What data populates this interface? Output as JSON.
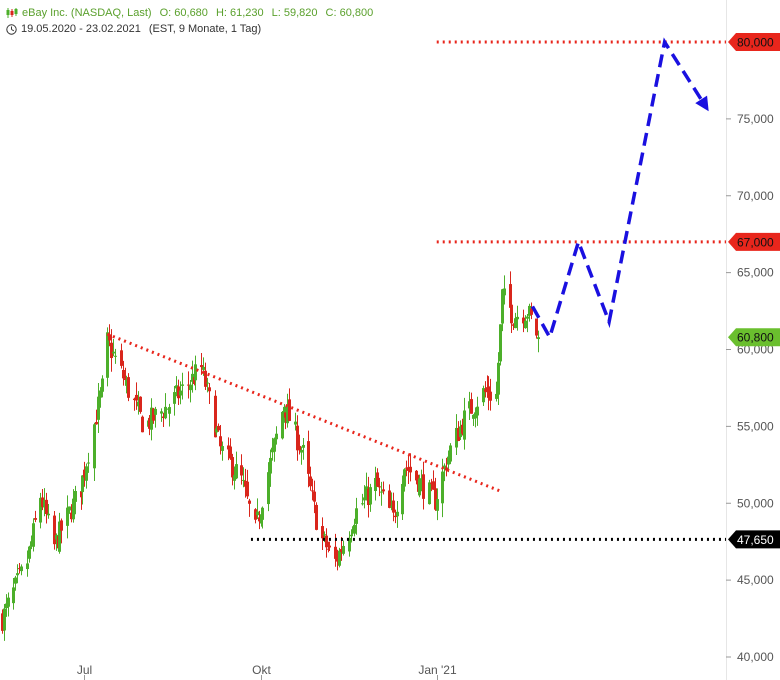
{
  "header": {
    "title": "eBay Inc. (NASDAQ, Last)",
    "open": "O: 60,680",
    "high": "H: 61,230",
    "low": "L: 59,820",
    "close": "C: 60,800",
    "range": "19.05.2020 - 23.02.2021",
    "timeframe": "(EST, 9 Monate, 1 Tag)"
  },
  "colors": {
    "up": "#4caf2a",
    "down": "#d9261c",
    "resistance": "#e8261c",
    "support": "#000000",
    "forecast": "#1a10e0",
    "axis_text": "#555555",
    "last_price_badge": "#6abf2e"
  },
  "icons": {
    "chart_type": "candlestick-icon",
    "period": "clock-icon"
  },
  "chart_data": {
    "type": "candlestick",
    "title": "eBay Inc. (NASDAQ, Last)",
    "xlabel": "",
    "ylabel": "",
    "ylim": [
      39.5,
      82.0
    ],
    "xlim": [
      "2020-05-19",
      "2021-05-31"
    ],
    "y_ticks": [
      40,
      45,
      50,
      55,
      60,
      65,
      70,
      75
    ],
    "y_tick_labels": [
      "40,000",
      "45,000",
      "50,000",
      "55,000",
      "60,000",
      "65,000",
      "70,000",
      "75,000"
    ],
    "x_ticks": [
      {
        "date": "2020-07-01",
        "label": "Jul"
      },
      {
        "date": "2020-10-01",
        "label": "Okt"
      },
      {
        "date": "2021-01-01",
        "label": "Jan '21"
      }
    ],
    "grid": false,
    "key_points": [
      {
        "date": "2020-05-19",
        "close": 42.5
      },
      {
        "date": "2020-06-01",
        "close": 46.2
      },
      {
        "date": "2020-06-08",
        "close": 50.5
      },
      {
        "date": "2020-06-15",
        "close": 47.2
      },
      {
        "date": "2020-06-29",
        "close": 51.0
      },
      {
        "date": "2020-07-10",
        "close": 57.5
      },
      {
        "date": "2020-07-13",
        "close": 60.5
      },
      {
        "date": "2020-07-20",
        "close": 58.5
      },
      {
        "date": "2020-08-01",
        "close": 55.0
      },
      {
        "date": "2020-08-15",
        "close": 56.5
      },
      {
        "date": "2020-08-31",
        "close": 58.8
      },
      {
        "date": "2020-09-10",
        "close": 53.5
      },
      {
        "date": "2020-09-21",
        "close": 51.5
      },
      {
        "date": "2020-09-28",
        "close": 48.2
      },
      {
        "date": "2020-10-13",
        "close": 56.5
      },
      {
        "date": "2020-10-23",
        "close": 53.2
      },
      {
        "date": "2020-11-01",
        "close": 47.8
      },
      {
        "date": "2020-11-09",
        "close": 46.2
      },
      {
        "date": "2020-11-20",
        "close": 49.5
      },
      {
        "date": "2020-11-30",
        "close": 51.2
      },
      {
        "date": "2020-12-09",
        "close": 49.0
      },
      {
        "date": "2020-12-15",
        "close": 52.5
      },
      {
        "date": "2020-12-31",
        "close": 50.2
      },
      {
        "date": "2021-01-08",
        "close": 53.5
      },
      {
        "date": "2021-01-15",
        "close": 55.5
      },
      {
        "date": "2021-01-25",
        "close": 57.2
      },
      {
        "date": "2021-02-01",
        "close": 57.0
      },
      {
        "date": "2021-02-04",
        "close": 63.5
      },
      {
        "date": "2021-02-10",
        "close": 62.2
      },
      {
        "date": "2021-02-17",
        "close": 62.5
      },
      {
        "date": "2021-02-23",
        "close": 60.8
      }
    ],
    "lines": [
      {
        "name": "",
        "kind": "resistance",
        "style": "dotted",
        "color": "#e8261c",
        "value": 80.0,
        "label": "80,000",
        "from": "2021-01-01",
        "to": "2021-05-31"
      },
      {
        "name": "",
        "kind": "resistance",
        "style": "dotted",
        "color": "#e8261c",
        "value": 67.0,
        "label": "67,000",
        "from": "2021-01-01",
        "to": "2021-05-31"
      },
      {
        "name": "",
        "kind": "support",
        "style": "dotted",
        "color": "#000000",
        "value": 47.65,
        "label": "47,650",
        "from": "2020-09-26",
        "to": "2021-05-31"
      }
    ],
    "trendline": {
      "color": "#e8261c",
      "style": "dotted",
      "points": [
        [
          "2020-07-13",
          61.0
        ],
        [
          "2021-02-03",
          50.8
        ]
      ]
    },
    "forecast_path": {
      "color": "#1a10e0",
      "style": "dashed",
      "points": [
        [
          "2021-02-20",
          62.8
        ],
        [
          "2021-03-01",
          60.8
        ],
        [
          "2021-03-16",
          67.0
        ],
        [
          "2021-04-01",
          61.8
        ],
        [
          "2021-04-30",
          80.0
        ],
        [
          "2021-05-23",
          75.5
        ]
      ]
    },
    "last_price": {
      "value": 60.8,
      "label": "60,800"
    },
    "ohlc_last": {
      "open": 60.68,
      "high": 61.23,
      "low": 59.82,
      "close": 60.8
    }
  }
}
